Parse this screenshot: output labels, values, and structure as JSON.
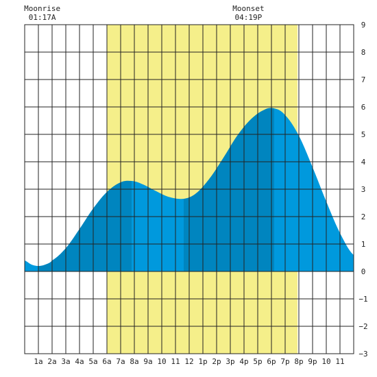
{
  "chart_data": {
    "type": "area",
    "x_tick_labels": [
      "1a",
      "2a",
      "3a",
      "4a",
      "5a",
      "6a",
      "7a",
      "8a",
      "9a",
      "10",
      "11",
      "12",
      "1p",
      "2p",
      "3p",
      "4p",
      "5p",
      "6p",
      "7p",
      "8p",
      "9p",
      "10",
      "11"
    ],
    "y_ticks": [
      -3,
      -2,
      -1,
      0,
      1,
      2,
      3,
      4,
      5,
      6,
      7,
      8,
      9
    ],
    "ylim": [
      -3,
      9
    ],
    "xlim_hours": [
      0,
      24
    ],
    "grid": true,
    "daylight_hours": [
      6.0,
      19.9
    ],
    "moon_events": [
      {
        "label": "Moonrise",
        "time": "01:17A",
        "hour": 1.28
      },
      {
        "label": "Moonset",
        "time": "04:19P",
        "hour": 16.32
      }
    ],
    "tide_extremes": [
      {
        "type": "low",
        "hour": 1.0,
        "height_ft": 0.2
      },
      {
        "type": "high",
        "hour": 7.8,
        "height_ft": 3.3
      },
      {
        "type": "low",
        "hour": 11.6,
        "height_ft": 2.7
      },
      {
        "type": "high",
        "hour": 18.2,
        "height_ft": 5.95
      },
      {
        "type": "low",
        "hour": 24.0,
        "height_ft": 0.6
      }
    ],
    "series": [
      {
        "x": [
          0,
          0.5,
          1,
          1.5,
          2,
          3,
          4,
          5,
          6,
          7,
          7.8,
          8.5,
          9.5,
          10.5,
          11.6,
          12.5,
          13.5,
          14.5,
          15.5,
          16.5,
          17.5,
          18.2,
          19,
          20,
          21,
          22,
          23,
          24
        ],
        "values": [
          0.4,
          0.25,
          0.2,
          0.25,
          0.4,
          0.85,
          1.55,
          2.3,
          2.9,
          3.25,
          3.3,
          3.2,
          2.95,
          2.72,
          2.65,
          2.85,
          3.4,
          4.15,
          4.95,
          5.55,
          5.9,
          5.95,
          5.7,
          4.95,
          3.8,
          2.55,
          1.4,
          0.6
        ]
      }
    ],
    "colors": {
      "daylight": "#f5ef8a",
      "tide_dark": "#0085bf",
      "tide_light": "#0099dd",
      "grid": "#222222"
    }
  }
}
